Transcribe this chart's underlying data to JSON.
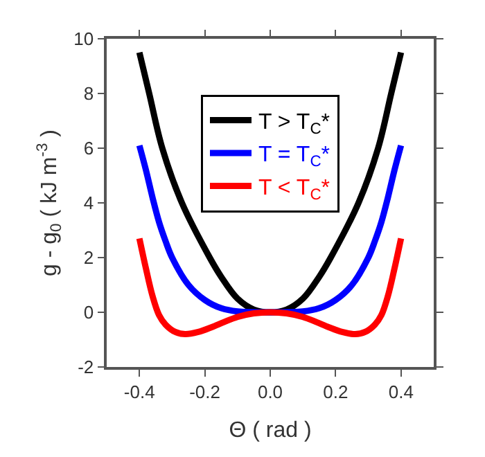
{
  "chart_data": {
    "type": "line",
    "xlabel": "Θ ( rad )",
    "ylabel": "g - g$_{0}$ ( kJ m$^{-3}$ )",
    "x": [
      -0.4,
      -0.37,
      -0.33,
      -0.27,
      -0.185,
      -0.15,
      -0.1,
      -0.05,
      0,
      0.05,
      0.1,
      0.15,
      0.185,
      0.27,
      0.33,
      0.37,
      0.4
    ],
    "series": [
      {
        "name": "T > T$_{C}$*",
        "color": "#000000",
        "values": [
          9.5,
          8,
          6,
          4,
          2,
          1.3,
          0.5,
          0.1,
          0,
          0.1,
          0.5,
          1.3,
          2,
          4,
          6,
          8,
          9.5
        ]
      },
      {
        "name": "T = T$_{C}$*",
        "color": "#0000ff",
        "x": [
          -0.4,
          -0.38,
          -0.36,
          -0.34,
          -0.32,
          -0.3,
          -0.25,
          -0.2,
          -0.15,
          -0.1,
          0,
          0.1,
          0.15,
          0.2,
          0.25,
          0.3,
          0.32,
          0.34,
          0.36,
          0.38,
          0.4
        ],
        "values": [
          6.1,
          5.2,
          4.2,
          3.3,
          2.6,
          2,
          1,
          0.45,
          0.15,
          0.03,
          0,
          0.03,
          0.15,
          0.45,
          1,
          2,
          2.6,
          3.3,
          4.2,
          5.2,
          6.1
        ]
      },
      {
        "name": "T < T$_{C}$*",
        "color": "#ff0000",
        "x": [
          -0.4,
          -0.38,
          -0.36,
          -0.34,
          -0.32,
          -0.29,
          -0.26,
          -0.22,
          -0.18,
          -0.14,
          -0.1,
          -0.05,
          0,
          0.05,
          0.1,
          0.14,
          0.18,
          0.22,
          0.26,
          0.29,
          0.32,
          0.34,
          0.36,
          0.38,
          0.4
        ],
        "values": [
          2.7,
          1.6,
          0.6,
          -0.1,
          -0.45,
          -0.72,
          -0.8,
          -0.72,
          -0.55,
          -0.35,
          -0.17,
          -0.04,
          0,
          -0.04,
          -0.17,
          -0.35,
          -0.55,
          -0.72,
          -0.8,
          -0.72,
          -0.45,
          -0.1,
          0.6,
          1.6,
          2.7
        ]
      }
    ],
    "xlim": [
      -0.5,
      0.5
    ],
    "xticks": [
      -0.4,
      -0.2,
      {
        "value": 0,
        "label": "0.0"
      },
      0.2,
      0.4
    ],
    "ylim": [
      -2,
      10
    ],
    "yticks": [
      -2,
      0,
      2,
      4,
      6,
      8,
      10
    ],
    "legend": "top",
    "marker": "none",
    "line_style": "solid"
  }
}
